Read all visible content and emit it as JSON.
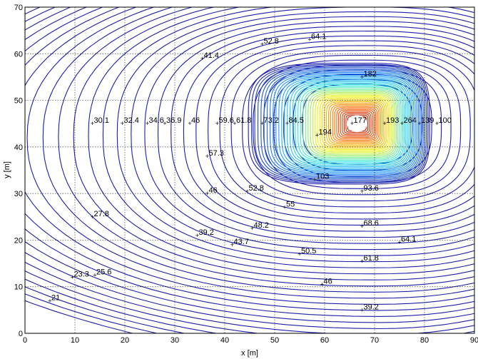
{
  "chart_data": {
    "type": "contour",
    "xlabel": "x [m]",
    "ylabel": "y [m]",
    "xlim": [
      0,
      90
    ],
    "ylim": [
      0,
      70
    ],
    "xticks": [
      0,
      10,
      20,
      30,
      40,
      50,
      60,
      70,
      80,
      90
    ],
    "yticks": [
      0,
      10,
      20,
      30,
      40,
      50,
      60,
      70
    ],
    "grid": true,
    "colors": {
      "low": "#1f1fa8",
      "mid1": "#1e90ff",
      "mid2": "#2ee6e6",
      "mid3": "#f5f500",
      "mid4": "#ff6600",
      "high": "#b30000",
      "hot_center": "#ffffff"
    },
    "peak_region": {
      "x_range": [
        59,
        75
      ],
      "y_range": [
        38.5,
        51.5
      ],
      "center": [
        66.5,
        45
      ]
    },
    "labels": [
      {
        "text": "64.1",
        "x": 57,
        "y": 63
      },
      {
        "text": "52.8",
        "x": 47.5,
        "y": 62
      },
      {
        "text": "41.4",
        "x": 35.5,
        "y": 59
      },
      {
        "text": "182",
        "x": 67.5,
        "y": 55
      },
      {
        "text": "30.1",
        "x": 13.5,
        "y": 45
      },
      {
        "text": "32.4",
        "x": 19.5,
        "y": 45
      },
      {
        "text": "34.6",
        "x": 24.5,
        "y": 45
      },
      {
        "text": "36.9",
        "x": 28,
        "y": 45
      },
      {
        "text": "46",
        "x": 33,
        "y": 45
      },
      {
        "text": "59.6",
        "x": 38.5,
        "y": 45
      },
      {
        "text": "61.8",
        "x": 42,
        "y": 45
      },
      {
        "text": "73.2",
        "x": 47.5,
        "y": 45
      },
      {
        "text": "84.5",
        "x": 52.5,
        "y": 45
      },
      {
        "text": "177",
        "x": 65.5,
        "y": 45
      },
      {
        "text": "193",
        "x": 72,
        "y": 45
      },
      {
        "text": "264",
        "x": 75.5,
        "y": 45
      },
      {
        "text": "139",
        "x": 79,
        "y": 45
      },
      {
        "text": "100",
        "x": 82.5,
        "y": 45
      },
      {
        "text": "194",
        "x": 58.5,
        "y": 42.5
      },
      {
        "text": "57.3",
        "x": 36.5,
        "y": 38
      },
      {
        "text": "103",
        "x": 58,
        "y": 33
      },
      {
        "text": "52.8",
        "x": 44.5,
        "y": 30.5
      },
      {
        "text": "46",
        "x": 36.5,
        "y": 30
      },
      {
        "text": "93.6",
        "x": 67.5,
        "y": 30.5
      },
      {
        "text": "55",
        "x": 52,
        "y": 27
      },
      {
        "text": "27.8",
        "x": 13.5,
        "y": 25
      },
      {
        "text": "48.2",
        "x": 45.5,
        "y": 22.5
      },
      {
        "text": "68.6",
        "x": 67.5,
        "y": 23
      },
      {
        "text": "39.2",
        "x": 34.5,
        "y": 21
      },
      {
        "text": "43.7",
        "x": 41.5,
        "y": 19
      },
      {
        "text": "64.1",
        "x": 75,
        "y": 19.5
      },
      {
        "text": "50.5",
        "x": 55,
        "y": 17
      },
      {
        "text": "61.8",
        "x": 67.5,
        "y": 15.5
      },
      {
        "text": "23.3",
        "x": 9.5,
        "y": 12
      },
      {
        "text": "25.6",
        "x": 14,
        "y": 12.5
      },
      {
        "text": "46",
        "x": 59.5,
        "y": 10.5
      },
      {
        "text": "21",
        "x": 5,
        "y": 7
      },
      {
        "text": "39.2",
        "x": 67.5,
        "y": 5
      }
    ]
  }
}
